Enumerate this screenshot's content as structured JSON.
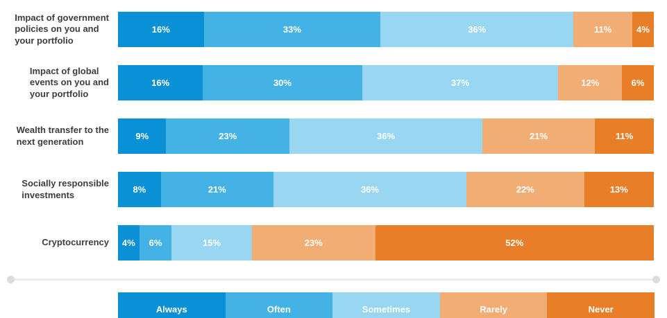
{
  "chart_data": {
    "type": "bar",
    "subtype": "horizontal-stacked",
    "unit": "%",
    "title": "",
    "xlabel": "",
    "ylabel": "",
    "axis": {
      "x_range": [
        0,
        100
      ],
      "grid": false,
      "ticks_visible": false
    },
    "categories": [
      "Impact of government\npolicies on you and\nyour portfolio",
      "Impact of global\nevents on you and\nyour portfolio",
      "Wealth transfer to the\nnext generation",
      "Socially responsible\ninvestments",
      "Cryptocurrency"
    ],
    "series": [
      {
        "name": "Always",
        "color": "#0a90d4",
        "values": [
          16,
          16,
          9,
          8,
          4
        ]
      },
      {
        "name": "Often",
        "color": "#45b2e6",
        "values": [
          33,
          30,
          23,
          21,
          6
        ]
      },
      {
        "name": "Sometimes",
        "color": "#99d6f2",
        "values": [
          36,
          37,
          36,
          36,
          15
        ]
      },
      {
        "name": "Rarely",
        "color": "#f2ad74",
        "values": [
          11,
          12,
          21,
          22,
          23
        ]
      },
      {
        "name": "Never",
        "color": "#e87e28",
        "values": [
          4,
          6,
          11,
          13,
          52
        ]
      }
    ],
    "legend": {
      "position": "bottom",
      "labels": [
        "Always",
        "Often",
        "Sometimes",
        "Rarely",
        "Never"
      ]
    },
    "value_label_format": "{value}%",
    "value_label_color": "#ffffff"
  }
}
